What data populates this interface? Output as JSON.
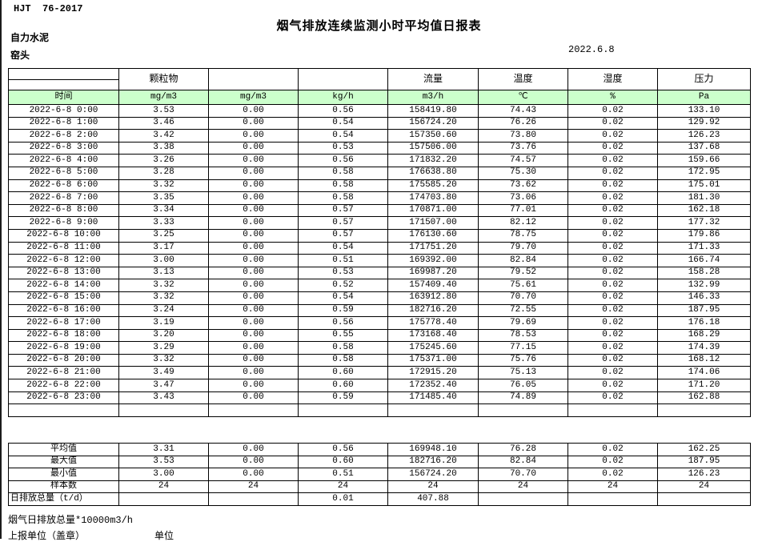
{
  "page": {
    "doc_code": "HJT  76-2017",
    "title": "烟气排放连续监测小时平均值日报表",
    "company": "自力水泥",
    "location": "窑头",
    "date": "2022.6.8"
  },
  "colors": {
    "header_green": "#CCFFCC",
    "border": "#000000"
  },
  "table": {
    "group_headers": [
      "",
      "颗粒物",
      "",
      "",
      "流量",
      "温度",
      "湿度",
      "压力"
    ],
    "unit_row": [
      "时间",
      "mg/m3",
      "mg/m3",
      "kg/h",
      "m3/h",
      "℃",
      "%",
      "Pa"
    ],
    "rows": [
      {
        "time": "2022-6-8 0:00",
        "values": [
          "3.53",
          "0.00",
          "0.56",
          "158419.80",
          "74.43",
          "0.02",
          "133.10"
        ]
      },
      {
        "time": "2022-6-8 1:00",
        "values": [
          "3.46",
          "0.00",
          "0.54",
          "156724.20",
          "76.26",
          "0.02",
          "129.92"
        ]
      },
      {
        "time": "2022-6-8 2:00",
        "values": [
          "3.42",
          "0.00",
          "0.54",
          "157350.60",
          "73.80",
          "0.02",
          "126.23"
        ]
      },
      {
        "time": "2022-6-8 3:00",
        "values": [
          "3.38",
          "0.00",
          "0.53",
          "157506.00",
          "73.76",
          "0.02",
          "137.68"
        ]
      },
      {
        "time": "2022-6-8 4:00",
        "values": [
          "3.26",
          "0.00",
          "0.56",
          "171832.20",
          "74.57",
          "0.02",
          "159.66"
        ]
      },
      {
        "time": "2022-6-8 5:00",
        "values": [
          "3.28",
          "0.00",
          "0.58",
          "176638.80",
          "75.30",
          "0.02",
          "172.95"
        ]
      },
      {
        "time": "2022-6-8 6:00",
        "values": [
          "3.32",
          "0.00",
          "0.58",
          "175585.20",
          "73.62",
          "0.02",
          "175.01"
        ]
      },
      {
        "time": "2022-6-8 7:00",
        "values": [
          "3.35",
          "0.00",
          "0.58",
          "174703.80",
          "73.06",
          "0.02",
          "181.30"
        ]
      },
      {
        "time": "2022-6-8 8:00",
        "values": [
          "3.34",
          "0.00",
          "0.57",
          "170871.00",
          "77.01",
          "0.02",
          "162.18"
        ]
      },
      {
        "time": "2022-6-8 9:00",
        "values": [
          "3.33",
          "0.00",
          "0.57",
          "171507.00",
          "82.12",
          "0.02",
          "177.32"
        ]
      },
      {
        "time": "2022-6-8 10:00",
        "values": [
          "3.25",
          "0.00",
          "0.57",
          "176130.60",
          "78.75",
          "0.02",
          "179.86"
        ]
      },
      {
        "time": "2022-6-8 11:00",
        "values": [
          "3.17",
          "0.00",
          "0.54",
          "171751.20",
          "79.70",
          "0.02",
          "171.33"
        ]
      },
      {
        "time": "2022-6-8 12:00",
        "values": [
          "3.00",
          "0.00",
          "0.51",
          "169392.00",
          "82.84",
          "0.02",
          "166.74"
        ]
      },
      {
        "time": "2022-6-8 13:00",
        "values": [
          "3.13",
          "0.00",
          "0.53",
          "169987.20",
          "79.52",
          "0.02",
          "158.28"
        ]
      },
      {
        "time": "2022-6-8 14:00",
        "values": [
          "3.32",
          "0.00",
          "0.52",
          "157409.40",
          "75.61",
          "0.02",
          "132.99"
        ]
      },
      {
        "time": "2022-6-8 15:00",
        "values": [
          "3.32",
          "0.00",
          "0.54",
          "163912.80",
          "70.70",
          "0.02",
          "146.33"
        ]
      },
      {
        "time": "2022-6-8 16:00",
        "values": [
          "3.24",
          "0.00",
          "0.59",
          "182716.20",
          "72.55",
          "0.02",
          "187.95"
        ]
      },
      {
        "time": "2022-6-8 17:00",
        "values": [
          "3.19",
          "0.00",
          "0.56",
          "175778.40",
          "79.69",
          "0.02",
          "176.18"
        ]
      },
      {
        "time": "2022-6-8 18:00",
        "values": [
          "3.20",
          "0.00",
          "0.55",
          "173168.40",
          "78.53",
          "0.02",
          "168.29"
        ]
      },
      {
        "time": "2022-6-8 19:00",
        "values": [
          "3.29",
          "0.00",
          "0.58",
          "175245.60",
          "77.15",
          "0.02",
          "174.39"
        ]
      },
      {
        "time": "2022-6-8 20:00",
        "values": [
          "3.32",
          "0.00",
          "0.58",
          "175371.00",
          "75.76",
          "0.02",
          "168.12"
        ]
      },
      {
        "time": "2022-6-8 21:00",
        "values": [
          "3.49",
          "0.00",
          "0.60",
          "172915.20",
          "75.13",
          "0.02",
          "174.06"
        ]
      },
      {
        "time": "2022-6-8 22:00",
        "values": [
          "3.47",
          "0.00",
          "0.60",
          "172352.40",
          "76.05",
          "0.02",
          "171.20"
        ]
      },
      {
        "time": "2022-6-8 23:00",
        "values": [
          "3.43",
          "0.00",
          "0.59",
          "171485.40",
          "74.89",
          "0.02",
          "162.88"
        ]
      }
    ],
    "summary": [
      {
        "label": "平均值",
        "left_align": false,
        "values": [
          "3.31",
          "0.00",
          "0.56",
          "169948.10",
          "76.28",
          "0.02",
          "162.25"
        ]
      },
      {
        "label": "最大值",
        "left_align": false,
        "values": [
          "3.53",
          "0.00",
          "0.60",
          "182716.20",
          "82.84",
          "0.02",
          "187.95"
        ]
      },
      {
        "label": "最小值",
        "left_align": false,
        "values": [
          "3.00",
          "0.00",
          "0.51",
          "156724.20",
          "70.70",
          "0.02",
          "126.23"
        ]
      },
      {
        "label": "样本数",
        "left_align": false,
        "values": [
          "24",
          "24",
          "24",
          "24",
          "24",
          "24",
          "24"
        ]
      },
      {
        "label": "日排放总量（t/d）",
        "left_align": true,
        "values": [
          "",
          "",
          "0.01",
          "407.88",
          "",
          "",
          ""
        ]
      }
    ]
  },
  "footer": {
    "note": "烟气日排放总量*10000m3/h",
    "report_unit_label": "上报单位（盖章）",
    "unit_label": "单位"
  }
}
